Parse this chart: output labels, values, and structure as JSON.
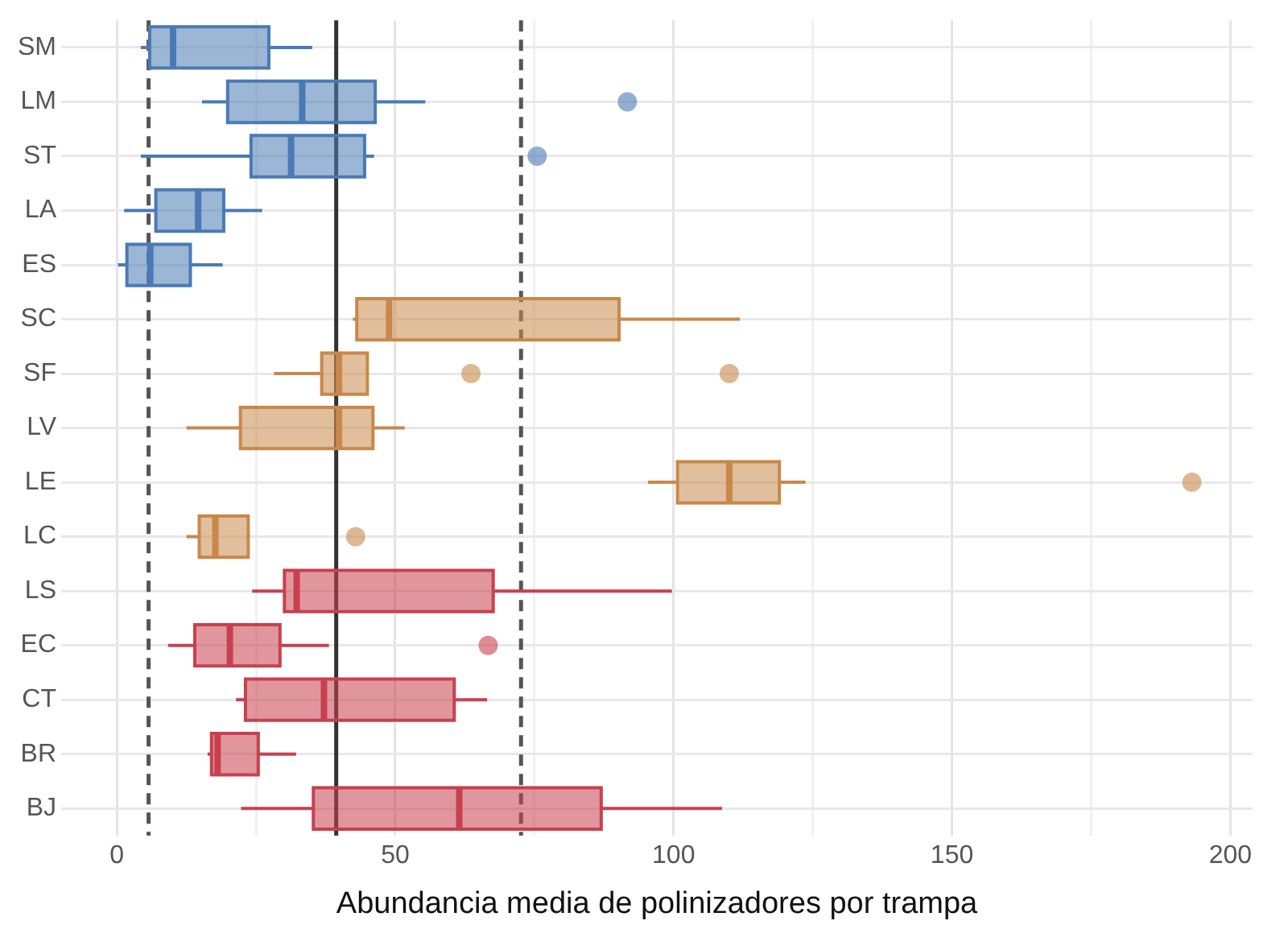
{
  "chart_data": {
    "type": "box",
    "orientation": "horizontal",
    "xlabel": "Abundancia media de polinizadores por trampa",
    "categories": [
      "SM",
      "LM",
      "ST",
      "LA",
      "ES",
      "SC",
      "SF",
      "LV",
      "LE",
      "LC",
      "LS",
      "EC",
      "CT",
      "BR",
      "BJ"
    ],
    "series": [
      {
        "color": "#4a7ab5",
        "boxes": [
          {
            "low": 4.3,
            "q1": 5.9,
            "median": 10.1,
            "q3": 27.3,
            "high": 35.1
          },
          {
            "low": 15.3,
            "q1": 19.9,
            "median": 33.3,
            "q3": 46.4,
            "high": 55.4,
            "outliers": [
              91.7
            ]
          },
          {
            "low": 4.3,
            "q1": 24.1,
            "median": 31.3,
            "q3": 44.5,
            "high": 46.2,
            "outliers": [
              75.5
            ]
          },
          {
            "low": 1.3,
            "q1": 7.0,
            "median": 14.6,
            "q3": 19.2,
            "high": 26.1
          },
          {
            "low": 0.2,
            "q1": 1.8,
            "median": 6.0,
            "q3": 13.2,
            "high": 19.0
          },
          null,
          null,
          null,
          null,
          null,
          null,
          null,
          null,
          null,
          null
        ]
      },
      {
        "color": "#c8884a",
        "boxes": [
          null,
          null,
          null,
          null,
          null,
          {
            "low": 42.4,
            "q1": 43.1,
            "median": 48.9,
            "q3": 90.2,
            "high": 111.9
          },
          {
            "low": 28.2,
            "q1": 36.8,
            "median": 39.9,
            "q3": 45.0,
            "high": 45.0,
            "outliers": [
              63.6,
              110.0
            ]
          },
          {
            "low": 12.5,
            "q1": 22.2,
            "median": 39.9,
            "q3": 46.0,
            "high": 51.7
          },
          {
            "low": 95.4,
            "q1": 100.7,
            "median": 110.0,
            "q3": 119.0,
            "high": 123.7,
            "outliers": [
              193.1
            ]
          },
          {
            "low": 12.5,
            "q1": 14.8,
            "median": 17.7,
            "q3": 23.6,
            "high": 23.9,
            "outliers": [
              42.9
            ]
          },
          null,
          null,
          null,
          null,
          null
        ]
      },
      {
        "color": "#c8404f",
        "boxes": [
          null,
          null,
          null,
          null,
          null,
          null,
          null,
          null,
          null,
          null,
          {
            "low": 24.3,
            "q1": 30.1,
            "median": 32.3,
            "q3": 67.6,
            "high": 99.7
          },
          {
            "low": 9.2,
            "q1": 14.0,
            "median": 20.3,
            "q3": 29.3,
            "high": 38.1,
            "outliers": [
              66.7
            ]
          },
          {
            "low": 21.4,
            "q1": 23.1,
            "median": 37.2,
            "q3": 60.6,
            "high": 66.5
          },
          {
            "low": 16.3,
            "q1": 17.0,
            "median": 18.1,
            "q3": 25.4,
            "high": 32.2
          },
          {
            "low": 22.3,
            "q1": 35.3,
            "median": 61.5,
            "q3": 87.0,
            "high": 108.7
          }
        ]
      }
    ],
    "xlim": [
      -10,
      204
    ],
    "xticks": [
      0,
      {
        "value": 25,
        "label": null
      },
      50,
      {
        "value": 75,
        "label": null
      },
      100,
      {
        "value": 125,
        "label": null
      },
      150,
      {
        "value": 175,
        "label": null
      },
      200
    ],
    "ref_lines": [
      {
        "axis": "x",
        "value": 5.7,
        "color": "#555555",
        "line_style": "dashed"
      },
      {
        "axis": "x",
        "value": 39.4,
        "color": "#333333",
        "line_style": "solid"
      },
      {
        "axis": "x",
        "value": 72.6,
        "color": "#555555",
        "line_style": "dashed"
      }
    ],
    "grid": true
  }
}
